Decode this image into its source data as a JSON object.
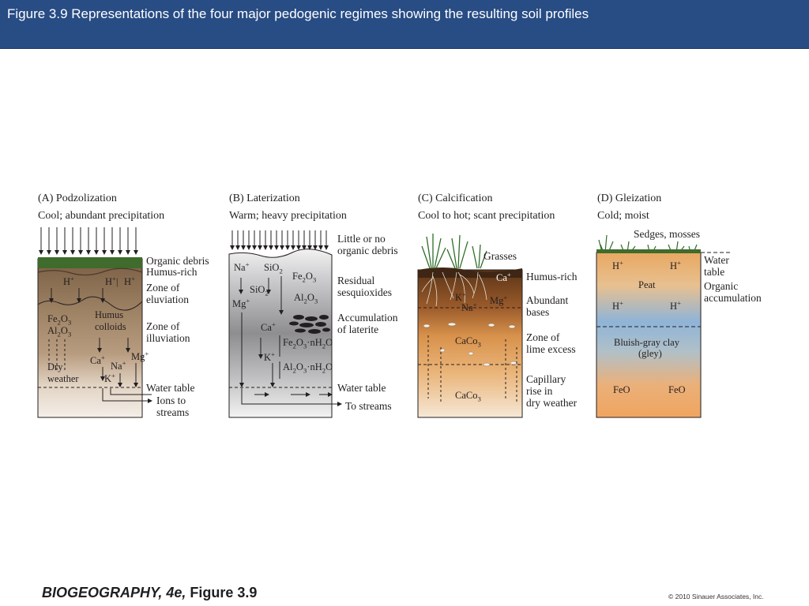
{
  "header": {
    "title": "Figure 3.9  Representations of the four major pedogenic regimes showing the resulting soil profiles"
  },
  "colors": {
    "header_bar": "#284c84",
    "podzol": "#a08466",
    "laterite": "#9a9a9c",
    "calcic": "#c98a4c",
    "gley_top": "#e8b46c",
    "gley_mid": "#8fb4d8"
  },
  "panels": {
    "a": {
      "heading": "(A)  Podzolization",
      "climate": "Cool; abundant precipitation",
      "side_labels": {
        "organic_debris": "Organic debris",
        "humus_rich": "Humus-rich",
        "zone_of": "Zone of",
        "eluviation": "eluviation",
        "zone_of_2": "Zone of",
        "illuviation": "illuviation",
        "water_table": "Water table",
        "ions_to": "Ions to",
        "streams": "streams"
      },
      "inner": {
        "h1": "H",
        "h2": "H",
        "h3": "H",
        "humus": "Humus",
        "colloids": "colloids",
        "fe": "Fe",
        "al": "Al",
        "dry": "Dry",
        "weather": "weather",
        "ca": "Ca",
        "na": "Na",
        "mg": "Mg",
        "k": "K"
      }
    },
    "b": {
      "heading": "(B)  Laterization",
      "climate": "Warm; heavy precipitation",
      "side_labels": {
        "little": "Little or no",
        "organic_debris": "organic debris",
        "residual": "Residual",
        "sesquioxides": "sesquioxides",
        "accumulation": "Accumulation",
        "of_laterite": "of laterite",
        "water_table": "Water table",
        "to_streams": "To streams"
      },
      "inner": {
        "na": "Na",
        "sio": "SiO",
        "fe": "Fe",
        "sio2": "SiO",
        "mg": "Mg",
        "al": "Al",
        "ca": "Ca",
        "fe_n": "Fe",
        "k": "K",
        "al_n": "Al"
      }
    },
    "c": {
      "heading": "(C)  Calcification",
      "climate": "Cool to hot; scant precipitation",
      "side_labels": {
        "grasses": "Grasses",
        "humus_rich": "Humus-rich",
        "abundant": "Abundant",
        "bases": "bases",
        "zone_of": "Zone of",
        "lime_excess": "lime excess",
        "capillary": "Capillary",
        "rise_in": "rise in",
        "dry_weather": "dry weather"
      },
      "inner": {
        "ca": "Ca",
        "k": "K",
        "na": "Na",
        "mg": "Mg",
        "caco1": "CaCo",
        "caco2": "CaCo"
      }
    },
    "d": {
      "heading": "(D)  Gleization",
      "climate": "Cold; moist",
      "side_labels": {
        "sedges": "Sedges, mosses",
        "water": "Water",
        "table": "table",
        "organic": "Organic",
        "accumulation": "accumulation"
      },
      "inner": {
        "h1": "H",
        "h2": "H",
        "peat": "Peat",
        "h3": "H",
        "h4": "H",
        "clay": "Bluish-gray clay",
        "gley": "(gley)",
        "feo1": "FeO",
        "feo2": "FeO"
      }
    }
  },
  "footer": {
    "book": "BIOGEOGRAPHY, 4e,",
    "figure": " Figure 3.9",
    "copyright": "© 2010 Sinauer Associates, Inc."
  }
}
